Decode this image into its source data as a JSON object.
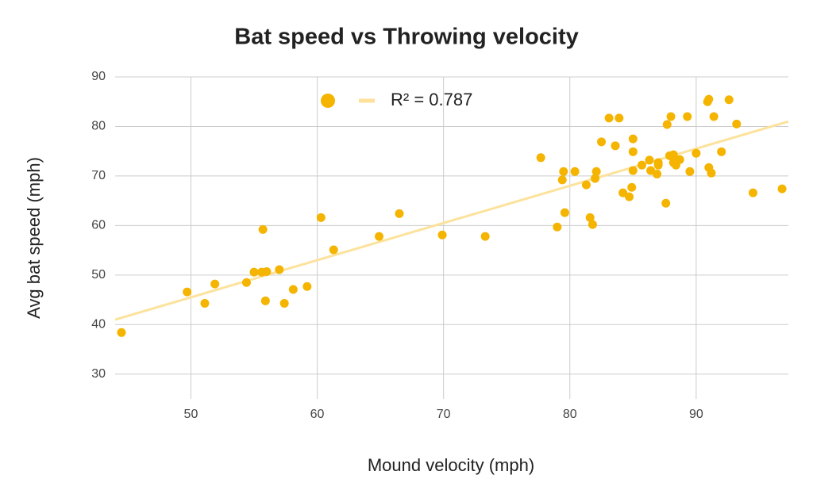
{
  "chart_data": {
    "type": "scatter",
    "title": "Bat speed vs Throwing velocity",
    "x_label": "Mound velocity (mph)",
    "y_label": "Avg bat speed (mph)",
    "color": "#f4b400",
    "x": [
      44.5,
      49.7,
      51.1,
      51.9,
      54.4,
      55.0,
      55.7,
      55.6,
      56.0,
      55.9,
      57.0,
      57.4,
      58.1,
      59.2,
      60.3,
      61.3,
      64.9,
      66.5,
      69.9,
      73.3,
      77.7,
      79.0,
      79.4,
      79.5,
      79.6,
      80.4,
      81.3,
      81.6,
      81.8,
      82.0,
      82.1,
      82.5,
      83.1,
      83.9,
      83.6,
      84.2,
      84.7,
      84.9,
      85.0,
      85.0,
      85.0,
      85.7,
      86.3,
      86.4,
      86.9,
      87.0,
      87.0,
      87.6,
      87.7,
      88.0,
      87.9,
      88.2,
      88.2,
      88.4,
      88.7,
      89.3,
      89.5,
      90.0,
      90.9,
      91.0,
      91.0,
      91.2,
      91.4,
      92.0,
      92.6,
      93.2,
      94.5,
      96.8
    ],
    "values": [
      38.4,
      46.6,
      44.3,
      48.2,
      48.5,
      50.6,
      59.2,
      50.6,
      50.7,
      44.8,
      51.1,
      44.3,
      47.1,
      47.7,
      61.6,
      55.1,
      57.8,
      62.4,
      58.1,
      57.8,
      73.7,
      59.7,
      69.2,
      70.9,
      62.6,
      70.9,
      68.2,
      61.6,
      60.2,
      69.5,
      70.9,
      76.9,
      81.7,
      81.7,
      76.1,
      66.6,
      65.8,
      67.7,
      77.5,
      74.9,
      71.1,
      72.2,
      73.2,
      71.1,
      70.4,
      72.2,
      72.7,
      64.5,
      80.4,
      82.0,
      74.1,
      74.3,
      72.7,
      72.2,
      73.3,
      82.0,
      70.9,
      74.6,
      85.0,
      85.5,
      71.7,
      70.6,
      82.0,
      74.9,
      85.4,
      80.5,
      66.6,
      67.4
    ],
    "trendline": {
      "label": "R² = 0.787",
      "color": "#fce29b",
      "x": [
        44,
        97.3
      ],
      "y": [
        41.0,
        81.0
      ]
    },
    "xlim": [
      44,
      97.3
    ],
    "xticks": [
      50,
      60,
      70,
      80,
      90
    ],
    "ylim": [
      25,
      90
    ],
    "yticks": [
      30,
      40,
      50,
      60,
      70,
      80,
      90
    ],
    "grid": true
  }
}
